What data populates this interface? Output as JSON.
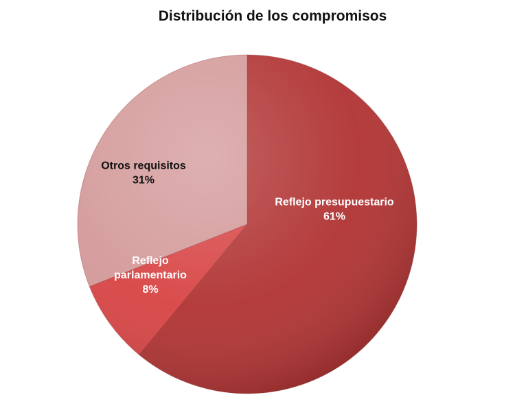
{
  "chart_data": {
    "type": "pie",
    "title": "Distribución de los compromisos",
    "slices": [
      {
        "label_lines": [
          "Reflejo presupuestario"
        ],
        "percent_label": "61%",
        "value": 61,
        "color": "#b13434",
        "text_color": "#ffffff"
      },
      {
        "label_lines": [
          "Reflejo",
          "parlamentario"
        ],
        "percent_label": "8%",
        "value": 8,
        "color": "#d84545",
        "text_color": "#ffffff"
      },
      {
        "label_lines": [
          "Otros requisitos"
        ],
        "percent_label": "31%",
        "value": 31,
        "color": "#d49a9a",
        "text_color": "#111111"
      }
    ],
    "start_angle": "12 o'clock",
    "direction": "clockwise",
    "legend": "none"
  }
}
